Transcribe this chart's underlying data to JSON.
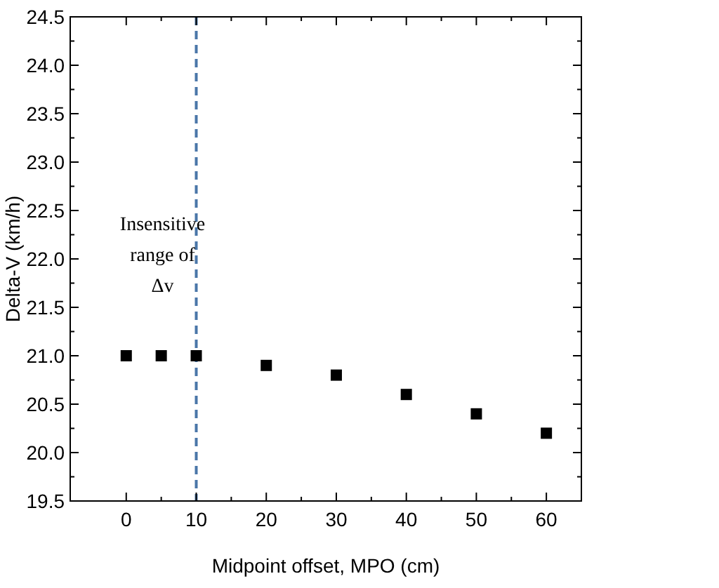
{
  "chart_data": {
    "type": "scatter",
    "xlabel": "Midpoint offset, MPO (cm)",
    "ylabel": "Delta-V (km/h)",
    "x": [
      0,
      5,
      10,
      20,
      30,
      40,
      50,
      60
    ],
    "series": [
      {
        "color": "#000000",
        "values": [
          21.0,
          21.0,
          21.0,
          20.9,
          20.8,
          20.6,
          20.4,
          20.2
        ]
      }
    ],
    "xlim": [
      -8,
      65
    ],
    "xticks": [
      0,
      10,
      20,
      30,
      40,
      50,
      60
    ],
    "ylim": [
      19.5,
      24.5
    ],
    "yticks": [
      {
        "value": 19.5,
        "label": "19.5"
      },
      {
        "value": 20,
        "label": "20.0"
      },
      {
        "value": 20.5,
        "label": "20.5"
      },
      {
        "value": 21,
        "label": "21.0"
      },
      {
        "value": 21.5,
        "label": "21.5"
      },
      {
        "value": 22,
        "label": "22.0"
      },
      {
        "value": 22.5,
        "label": "22.5"
      },
      {
        "value": 23,
        "label": "23.0"
      },
      {
        "value": 23.5,
        "label": "23.5"
      },
      {
        "value": 24,
        "label": "24.0"
      },
      {
        "value": 24.5,
        "label": "24.5"
      }
    ],
    "ref_lines": [
      {
        "axis": "x",
        "value": 10,
        "color": "#4a76a8",
        "line_style": "dashed"
      }
    ],
    "annotations": [
      "Insensitive range of Δv"
    ],
    "marker": "square",
    "grid": false
  }
}
